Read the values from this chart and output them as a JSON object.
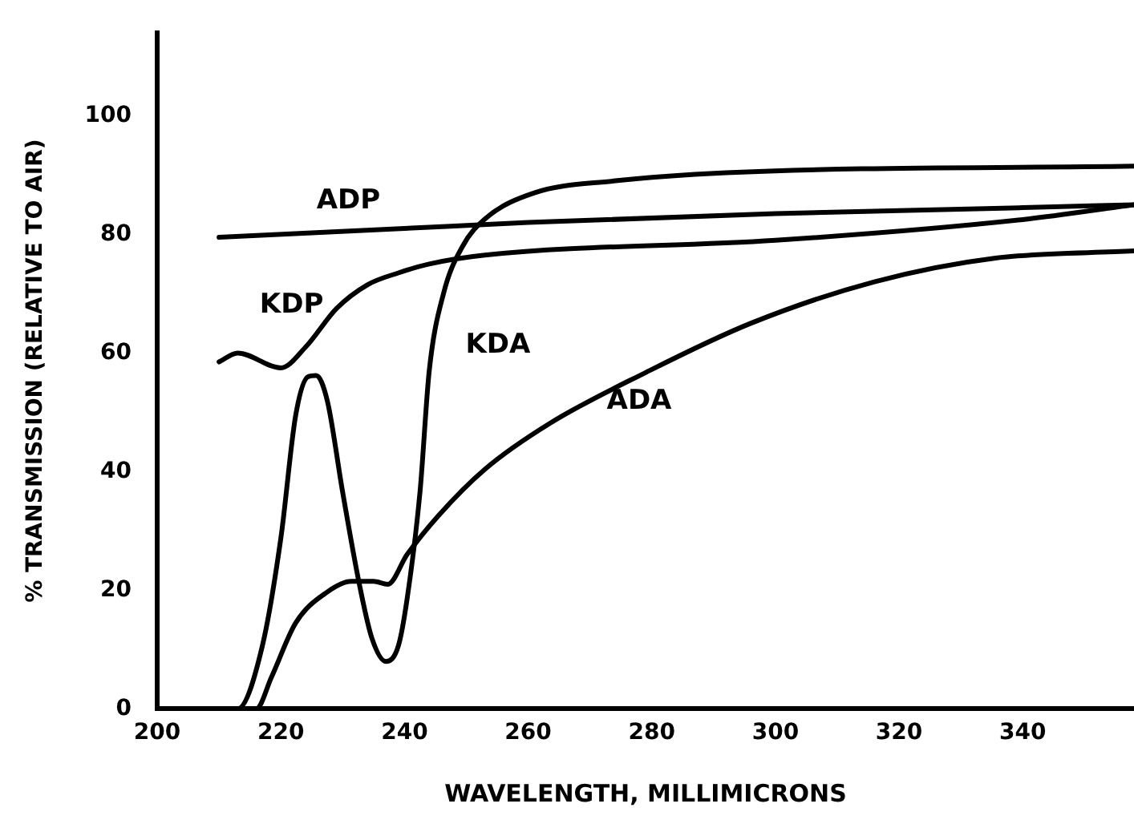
{
  "chart_data": {
    "type": "line",
    "xlabel": "WAVELENGTH, MILLIMICRONS",
    "ylabel": "% TRANSMISSION (RELATIVE TO AIR)",
    "xlim": [
      200,
      358
    ],
    "xticks": [
      200,
      220,
      240,
      260,
      280,
      300,
      320,
      340
    ],
    "ylim": [
      0,
      114
    ],
    "yticks": [
      0,
      20,
      40,
      60,
      80,
      100
    ],
    "grid": false,
    "legend": false,
    "marker": "none",
    "line_style": "solid",
    "series": [
      {
        "name": "ADP",
        "color": "#000000",
        "x": [
          210,
          240,
          260,
          300,
          340,
          358
        ],
        "values": [
          79.5,
          81,
          82,
          83.5,
          84.5,
          85
        ]
      },
      {
        "name": "KDP",
        "color": "#000000",
        "x": [
          210,
          213,
          220,
          224,
          229,
          234,
          239,
          244,
          253,
          300,
          340,
          358
        ],
        "values": [
          58.5,
          60,
          57.5,
          61,
          67.5,
          71.5,
          73.5,
          75,
          76.5,
          79,
          82.5,
          85
        ]
      },
      {
        "name": "KDA",
        "color": "#000000",
        "x": [
          210,
          213,
          217,
          220,
          222.4,
          224.4,
          225.7,
          227.5,
          230,
          232.7,
          234.7,
          237,
          239,
          240.4,
          242.5,
          244,
          246.3,
          249.4,
          253,
          261,
          273.8,
          292,
          358
        ],
        "values": [
          0,
          0,
          10.6,
          28.8,
          49.5,
          56,
          56.2,
          52,
          36.5,
          21,
          12,
          8,
          10.6,
          18.4,
          36.5,
          57,
          70,
          78,
          82.6,
          87,
          89,
          90.4,
          91.5
        ]
      },
      {
        "name": "ADA",
        "color": "#000000",
        "x": [
          210,
          216,
          218.5,
          222.4,
          227.5,
          231.4,
          235,
          237.3,
          240.4,
          245.5,
          253,
          263.6,
          279,
          296,
          316,
          335.6,
          358
        ],
        "values": [
          0,
          0,
          5.4,
          14.5,
          19.7,
          21.5,
          21.5,
          21,
          26,
          32.6,
          40.4,
          48.2,
          56.7,
          65,
          72,
          76,
          77.2
        ]
      }
    ]
  }
}
